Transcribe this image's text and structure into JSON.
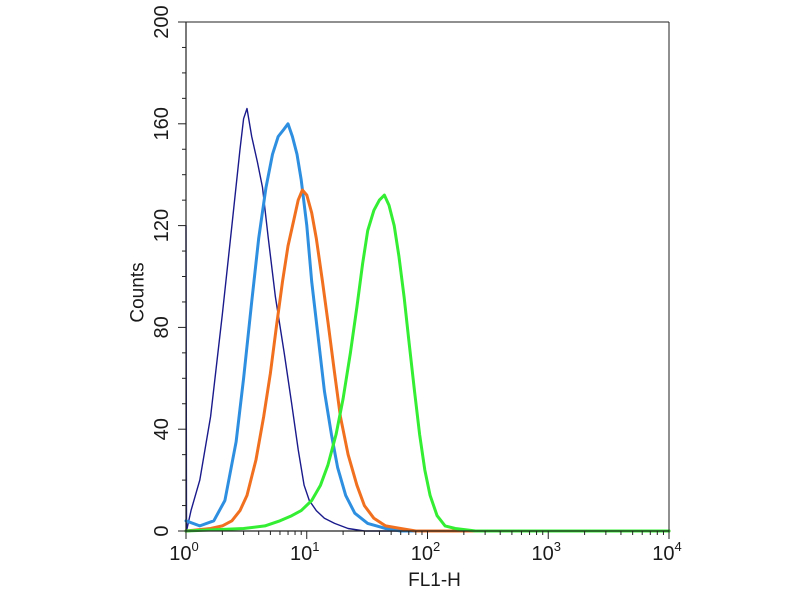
{
  "chart_data": {
    "type": "line",
    "title": "",
    "xlabel": "FL1-H",
    "ylabel": "Counts",
    "x_scale": "log",
    "xlim": [
      1,
      10000
    ],
    "ylim": [
      0,
      200
    ],
    "x_ticks": [
      {
        "base": "10",
        "exp": "0",
        "value": 1
      },
      {
        "base": "10",
        "exp": "1",
        "value": 10
      },
      {
        "base": "10",
        "exp": "2",
        "value": 100
      },
      {
        "base": "10",
        "exp": "3",
        "value": 1000
      },
      {
        "base": "10",
        "exp": "4",
        "value": 10000
      }
    ],
    "y_ticks": [
      "0",
      "40",
      "80",
      "120",
      "160",
      "200"
    ],
    "grid": false,
    "legend": "none",
    "series": [
      {
        "color": "#1a1a8c",
        "stroke": 1.4,
        "points": [
          [
            1.0,
            120
          ],
          [
            1.01,
            0
          ],
          [
            1.1,
            8
          ],
          [
            1.3,
            20
          ],
          [
            1.6,
            45
          ],
          [
            2.0,
            85
          ],
          [
            2.4,
            120
          ],
          [
            2.8,
            150
          ],
          [
            3.0,
            162
          ],
          [
            3.2,
            166
          ],
          [
            3.5,
            155
          ],
          [
            3.9,
            145
          ],
          [
            4.3,
            135
          ],
          [
            4.8,
            115
          ],
          [
            5.5,
            92
          ],
          [
            6.5,
            70
          ],
          [
            7.5,
            50
          ],
          [
            8.5,
            32
          ],
          [
            9.5,
            18
          ],
          [
            10.5,
            12
          ],
          [
            12,
            8
          ],
          [
            14,
            5
          ],
          [
            17,
            3
          ],
          [
            22,
            1
          ],
          [
            30,
            0
          ],
          [
            10000,
            0
          ]
        ]
      },
      {
        "color": "#2e8fe0",
        "stroke": 3,
        "points": [
          [
            1.0,
            4
          ],
          [
            1.3,
            2
          ],
          [
            1.7,
            4
          ],
          [
            2.1,
            12
          ],
          [
            2.6,
            35
          ],
          [
            3.0,
            60
          ],
          [
            3.5,
            90
          ],
          [
            4.0,
            115
          ],
          [
            4.6,
            135
          ],
          [
            5.2,
            148
          ],
          [
            5.8,
            155
          ],
          [
            6.5,
            158
          ],
          [
            7.0,
            160
          ],
          [
            7.6,
            155
          ],
          [
            8.3,
            148
          ],
          [
            9.0,
            138
          ],
          [
            10,
            120
          ],
          [
            11,
            98
          ],
          [
            12.5,
            75
          ],
          [
            14,
            55
          ],
          [
            16,
            38
          ],
          [
            18,
            25
          ],
          [
            21,
            14
          ],
          [
            25,
            7
          ],
          [
            32,
            3
          ],
          [
            45,
            1
          ],
          [
            60,
            0
          ],
          [
            10000,
            0
          ]
        ]
      },
      {
        "color": "#f07020",
        "stroke": 3,
        "points": [
          [
            1.0,
            0
          ],
          [
            1.6,
            1
          ],
          [
            2.0,
            2
          ],
          [
            2.4,
            4
          ],
          [
            2.8,
            8
          ],
          [
            3.2,
            14
          ],
          [
            3.8,
            28
          ],
          [
            4.4,
            45
          ],
          [
            5.0,
            62
          ],
          [
            5.6,
            80
          ],
          [
            6.3,
            98
          ],
          [
            7.0,
            112
          ],
          [
            7.8,
            122
          ],
          [
            8.5,
            130
          ],
          [
            9.2,
            134
          ],
          [
            10,
            132
          ],
          [
            11,
            125
          ],
          [
            12,
            115
          ],
          [
            13.5,
            98
          ],
          [
            15,
            82
          ],
          [
            17,
            62
          ],
          [
            19,
            45
          ],
          [
            22,
            30
          ],
          [
            26,
            18
          ],
          [
            30,
            10
          ],
          [
            36,
            5
          ],
          [
            45,
            2
          ],
          [
            60,
            1
          ],
          [
            80,
            0
          ],
          [
            10000,
            0
          ]
        ]
      },
      {
        "color": "#33ee33",
        "stroke": 3,
        "points": [
          [
            1.0,
            0
          ],
          [
            3.0,
            1
          ],
          [
            4.5,
            2
          ],
          [
            6.0,
            4
          ],
          [
            7.5,
            6
          ],
          [
            9.0,
            8
          ],
          [
            11,
            12
          ],
          [
            13,
            18
          ],
          [
            15,
            26
          ],
          [
            17.5,
            38
          ],
          [
            20,
            52
          ],
          [
            23,
            70
          ],
          [
            26,
            88
          ],
          [
            29,
            105
          ],
          [
            32,
            118
          ],
          [
            36,
            126
          ],
          [
            40,
            130
          ],
          [
            44,
            132
          ],
          [
            48,
            128
          ],
          [
            53,
            120
          ],
          [
            58,
            108
          ],
          [
            64,
            92
          ],
          [
            70,
            75
          ],
          [
            78,
            55
          ],
          [
            86,
            38
          ],
          [
            95,
            24
          ],
          [
            105,
            14
          ],
          [
            120,
            6
          ],
          [
            140,
            2
          ],
          [
            170,
            1
          ],
          [
            250,
            0
          ],
          [
            10000,
            0
          ]
        ]
      }
    ]
  }
}
